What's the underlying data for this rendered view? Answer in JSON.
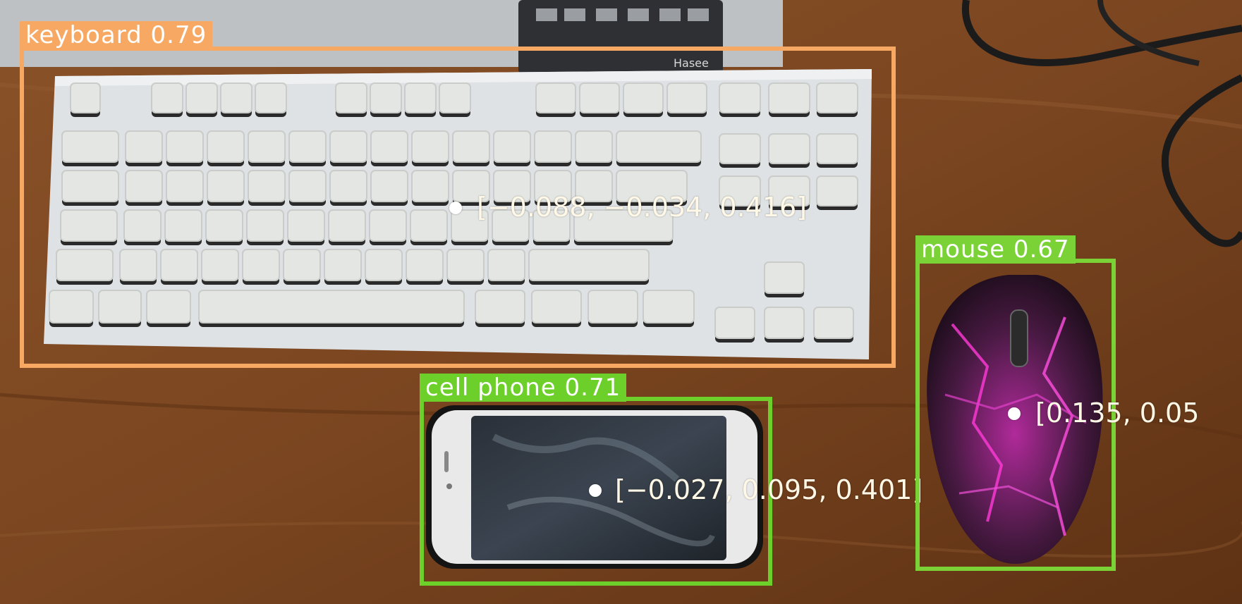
{
  "colors": {
    "keyboard": "#f7a862",
    "cell_phone": "#6ccf2a",
    "mouse": "#7ad236",
    "desk": "#7a4520",
    "text": "#ffffff"
  },
  "detections": [
    {
      "id": "keyboard",
      "label": "keyboard 0.79",
      "coords": "[−0.088, −0.034, 0.416]"
    },
    {
      "id": "cell_phone",
      "label": "cell phone 0.71",
      "coords": "[−0.027, 0.095, 0.401]"
    },
    {
      "id": "mouse",
      "label": "mouse 0.67",
      "coords": "[0.135, 0.05"
    }
  ]
}
